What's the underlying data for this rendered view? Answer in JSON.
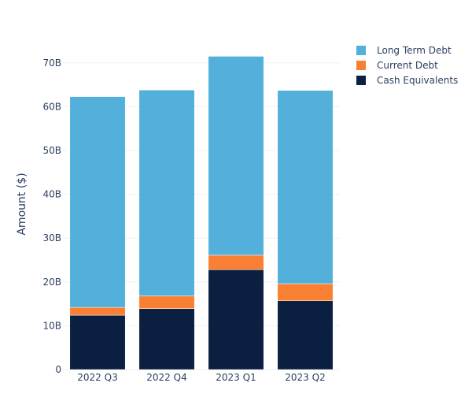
{
  "chart_data": {
    "type": "bar",
    "stacked": true,
    "title": "",
    "xlabel": "",
    "ylabel": "Amount ($)",
    "categories": [
      "2022 Q3",
      "2022 Q4",
      "2023 Q1",
      "2023 Q2"
    ],
    "ylim": [
      0,
      75
    ],
    "yticks": [
      0,
      10,
      20,
      30,
      40,
      50,
      60,
      70
    ],
    "ytick_labels": [
      "0",
      "10B",
      "20B",
      "30B",
      "40B",
      "50B",
      "60B",
      "70B"
    ],
    "unit": "B",
    "series": [
      {
        "name": "Cash Equivalents",
        "color": "#0b1f41",
        "values": [
          12.4,
          13.9,
          22.8,
          15.7
        ]
      },
      {
        "name": "Current Debt",
        "color": "#f98033",
        "values": [
          1.8,
          2.9,
          3.3,
          3.9
        ]
      },
      {
        "name": "Long Term Debt",
        "color": "#52b0da",
        "values": [
          48.1,
          47.0,
          45.4,
          44.1
        ]
      }
    ],
    "legend": {
      "position": "top-right",
      "order": [
        "Long Term Debt",
        "Current Debt",
        "Cash Equivalents"
      ]
    },
    "grid": true
  }
}
